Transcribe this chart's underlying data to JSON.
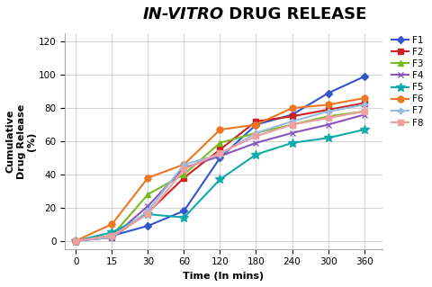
{
  "title_italic": "IN-VITRO",
  "title_bold": " DRUG RELEASE",
  "xlabel": "Time (In mins)",
  "ylabel": "Cumulative\nDrug Release\n(%)",
  "x_ticks": [
    0,
    15,
    30,
    60,
    120,
    180,
    240,
    300,
    360
  ],
  "ylim": [
    -5,
    125
  ],
  "yticks": [
    0,
    20,
    40,
    60,
    80,
    100,
    120
  ],
  "series": [
    {
      "label": "F1",
      "color": "#3355CC",
      "marker": "D",
      "markersize": 4,
      "linewidth": 1.5,
      "data": [
        0,
        3,
        9,
        18,
        50,
        70,
        76,
        89,
        99
      ]
    },
    {
      "label": "F2",
      "color": "#CC2222",
      "marker": "s",
      "markersize": 4,
      "linewidth": 1.5,
      "data": [
        0,
        2,
        17,
        38,
        55,
        72,
        75,
        79,
        83
      ]
    },
    {
      "label": "F3",
      "color": "#77BB22",
      "marker": "^",
      "markersize": 5,
      "linewidth": 1.5,
      "data": [
        0,
        3,
        28,
        40,
        59,
        65,
        70,
        75,
        78
      ]
    },
    {
      "label": "F4",
      "color": "#8855BB",
      "marker": "x",
      "markersize": 5,
      "linewidth": 1.5,
      "data": [
        0,
        2,
        21,
        44,
        51,
        59,
        65,
        70,
        76
      ]
    },
    {
      "label": "F5",
      "color": "#11AAAA",
      "marker": "*",
      "markersize": 7,
      "linewidth": 1.5,
      "data": [
        0,
        5,
        16,
        14,
        37,
        52,
        59,
        62,
        67
      ]
    },
    {
      "label": "F6",
      "color": "#EE7722",
      "marker": "o",
      "markersize": 5,
      "linewidth": 1.5,
      "data": [
        0,
        10,
        38,
        46,
        67,
        70,
        80,
        82,
        86
      ]
    },
    {
      "label": "F7",
      "color": "#99BBDD",
      "marker": "P",
      "markersize": 4,
      "linewidth": 1.5,
      "data": [
        0,
        2,
        18,
        46,
        52,
        65,
        72,
        78,
        82
      ]
    },
    {
      "label": "F8",
      "color": "#EEA0A0",
      "marker": "s",
      "markersize": 4,
      "linewidth": 1.5,
      "data": [
        0,
        3,
        16,
        43,
        53,
        63,
        70,
        74,
        78
      ]
    }
  ],
  "background_color": "#FFFFFF",
  "grid_color": "#CCCCCC",
  "title_fontsize": 13,
  "axis_fontsize": 8,
  "tick_fontsize": 7.5,
  "legend_fontsize": 7.5
}
